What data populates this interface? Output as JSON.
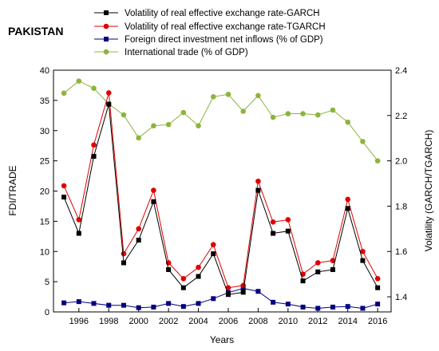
{
  "chart_data": {
    "type": "line",
    "title": "PAKISTAN",
    "xlabel": "Years",
    "ylabel_left": "FDI/TRADE",
    "ylabel_right": "Volatility (GARCH/TGARCH)",
    "x": [
      1995,
      1996,
      1997,
      1998,
      1999,
      2000,
      2001,
      2002,
      2003,
      2004,
      2005,
      2006,
      2007,
      2008,
      2009,
      2010,
      2011,
      2012,
      2013,
      2014,
      2015,
      2016
    ],
    "xticks": [
      "1996",
      "1998",
      "2000",
      "2002",
      "2004",
      "2006",
      "2008",
      "2010",
      "2012",
      "2014",
      "2016"
    ],
    "ylim_left": [
      0,
      40
    ],
    "yticks_left": [
      "0",
      "5",
      "10",
      "15",
      "20",
      "25",
      "30",
      "35",
      "40"
    ],
    "ylim_right": [
      1.3333,
      2.4
    ],
    "yticks_right": [
      "1.4",
      "1.6",
      "1.8",
      "2.0",
      "2.2",
      "2.4"
    ],
    "grid": false,
    "legend_position": "top",
    "series": [
      {
        "name": "Volatility of real effective exchange rate-GARCH",
        "axis": "right",
        "color": "#000000",
        "marker": "square",
        "values": [
          1.84,
          1.68,
          2.02,
          2.25,
          1.55,
          1.65,
          1.82,
          1.52,
          1.44,
          1.49,
          1.59,
          1.41,
          1.42,
          1.87,
          1.68,
          1.69,
          1.47,
          1.51,
          1.52,
          1.79,
          1.56,
          1.44
        ]
      },
      {
        "name": "Volatility of real effective exchange rate-TGARCH",
        "axis": "right",
        "color": "#e00000",
        "marker": "circle",
        "values": [
          1.89,
          1.74,
          2.07,
          2.3,
          1.59,
          1.7,
          1.87,
          1.55,
          1.48,
          1.53,
          1.63,
          1.44,
          1.45,
          1.91,
          1.73,
          1.74,
          1.5,
          1.55,
          1.56,
          1.83,
          1.6,
          1.48
        ]
      },
      {
        "name": "Foreign direct investment net inflows (% of GDP)",
        "axis": "left",
        "color": "#000080",
        "marker": "square",
        "values": [
          1.5,
          1.7,
          1.4,
          1.1,
          1.1,
          0.7,
          0.8,
          1.4,
          0.9,
          1.4,
          2.2,
          3.2,
          3.9,
          3.4,
          1.6,
          1.3,
          0.8,
          0.6,
          0.8,
          0.9,
          0.6,
          1.3
        ]
      },
      {
        "name": "International trade (% of GDP)",
        "axis": "left",
        "color": "#8db43c",
        "marker": "circle",
        "values": [
          36.2,
          38.2,
          37.0,
          34.4,
          32.6,
          28.8,
          30.8,
          31.0,
          33.0,
          30.8,
          35.6,
          36.0,
          33.2,
          35.8,
          32.2,
          32.8,
          32.8,
          32.6,
          33.4,
          31.4,
          28.2,
          25.0
        ]
      }
    ]
  }
}
